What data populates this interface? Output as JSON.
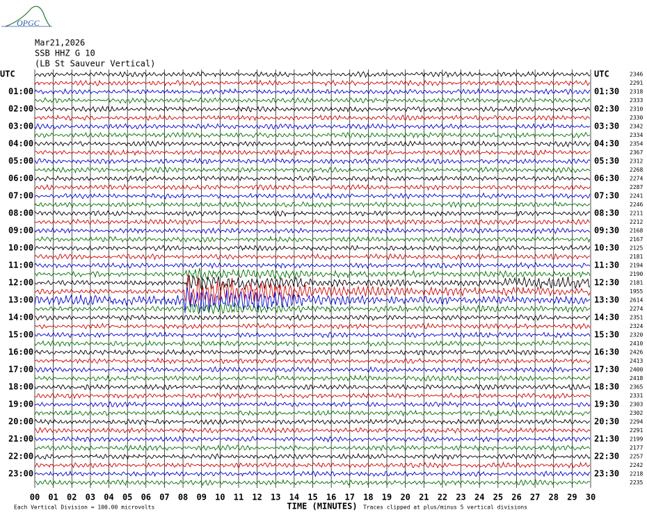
{
  "chart_data": {
    "type": "helicorder",
    "logo": "OPGC",
    "header": [
      "Mar21,2026",
      "SSB HHZ G 10",
      "(LB St Sauveur Vertical)"
    ],
    "left_labels": [
      "UTC",
      "01:00",
      "02:00",
      "03:00",
      "04:00",
      "05:00",
      "06:00",
      "07:00",
      "08:00",
      "09:00",
      "10:00",
      "11:00",
      "12:00",
      "13:00",
      "14:00",
      "15:00",
      "16:00",
      "17:00",
      "18:00",
      "19:00",
      "20:00",
      "21:00",
      "22:00",
      "23:00"
    ],
    "right_labels": [
      "UTC",
      "01:30",
      "02:30",
      "03:30",
      "04:30",
      "05:30",
      "06:30",
      "07:30",
      "08:30",
      "09:30",
      "10:30",
      "11:30",
      "12:30",
      "13:30",
      "14:30",
      "15:30",
      "16:30",
      "17:30",
      "18:30",
      "19:30",
      "20:30",
      "21:30",
      "22:30",
      "23:30"
    ],
    "trace_counts": [
      2346,
      2291,
      2318,
      2333,
      2310,
      2330,
      2342,
      2334,
      2354,
      2367,
      2312,
      2268,
      2274,
      2287,
      2241,
      2246,
      2211,
      2212,
      2168,
      2167,
      2125,
      2181,
      2194,
      2190,
      2181,
      1955,
      2614,
      2274,
      2351,
      2324,
      2320,
      2410,
      2426,
      2413,
      2400,
      2418,
      2365,
      2331,
      2303,
      2302,
      2294,
      2291,
      2199,
      2177,
      2257,
      2242,
      2218,
      2235
    ],
    "trace_colors": [
      "#000000",
      "#d00000",
      "#0000d0",
      "#007000"
    ],
    "xlim": [
      0,
      30
    ],
    "xticks": [
      {
        "value": 0,
        "label": "00"
      },
      {
        "value": 1,
        "label": "01"
      },
      {
        "value": 2,
        "label": "02"
      },
      {
        "value": 3,
        "label": "03"
      },
      {
        "value": 4,
        "label": "04"
      },
      {
        "value": 5,
        "label": "05"
      },
      {
        "value": 6,
        "label": "06"
      },
      {
        "value": 7,
        "label": "07"
      },
      {
        "value": 8,
        "label": "08"
      },
      {
        "value": 9,
        "label": "09"
      },
      10,
      11,
      12,
      13,
      14,
      15,
      16,
      17,
      18,
      19,
      20,
      21,
      22,
      23,
      24,
      25,
      26,
      27,
      28,
      29,
      30
    ],
    "x_label": "TIME (MINUTES)",
    "footer_left": "Each Vertical Division =  100.00 microvolts",
    "footer_right": "Traces clipped at plus/minus 5 vertical divisions"
  }
}
